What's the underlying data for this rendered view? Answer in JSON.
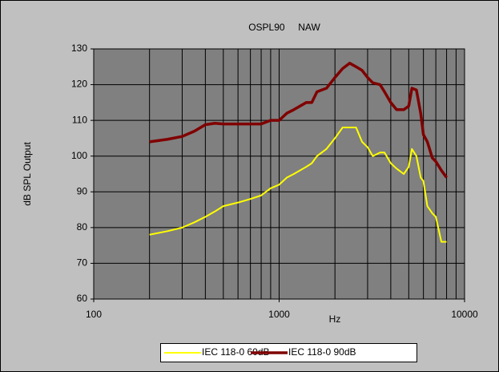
{
  "chart_data": {
    "type": "line",
    "title": "OSPL90     NAW",
    "x_label": "Hz",
    "y_label": "dB SPL Output",
    "x": [
      200,
      250,
      300,
      350,
      400,
      450,
      500,
      600,
      700,
      800,
      900,
      1000,
      1100,
      1200,
      1400,
      1500,
      1600,
      1800,
      2000,
      2200,
      2400,
      2600,
      2800,
      3000,
      3200,
      3500,
      3700,
      4000,
      4300,
      4700,
      5000,
      5200,
      5500,
      5800,
      6000,
      6300,
      6700,
      7000,
      7500,
      8000
    ],
    "series": [
      {
        "name": "IEC 118-0 60dB",
        "color": "#ffff00",
        "values": [
          78,
          79,
          80,
          81.5,
          83,
          84.5,
          86,
          87,
          88,
          89,
          91,
          92,
          94,
          95,
          97,
          98,
          100,
          102,
          105,
          108,
          108,
          108,
          104,
          102.5,
          100,
          101,
          101,
          98,
          96.5,
          95,
          97,
          102,
          100,
          94,
          93,
          86,
          84,
          83,
          76,
          76
        ]
      },
      {
        "name": "IEC 118-0 90dB",
        "color": "#800000",
        "values": [
          104,
          104.7,
          105.5,
          107,
          108.8,
          109.2,
          109,
          109,
          109,
          109,
          110,
          110,
          112,
          113,
          115,
          115,
          118,
          119,
          122,
          124.5,
          126,
          125,
          124,
          122,
          120.5,
          120,
          118,
          115,
          113,
          113,
          114,
          119,
          118.5,
          112,
          106,
          104,
          99.5,
          98.5,
          96,
          94
        ]
      }
    ],
    "xlim": [
      100,
      10000
    ],
    "xticks": [
      100,
      1000,
      10000
    ],
    "x_log": true,
    "ylim": [
      60,
      130
    ],
    "yticks": [
      60,
      70,
      80,
      90,
      100,
      110,
      120,
      130
    ],
    "grid": true,
    "legend": "bottom"
  }
}
